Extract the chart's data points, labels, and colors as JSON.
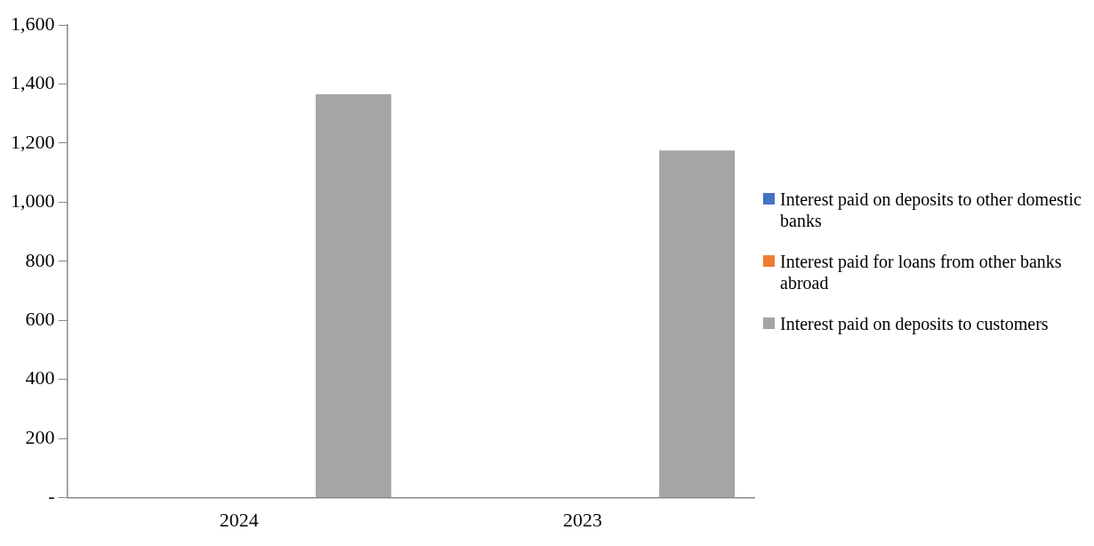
{
  "chart_data": {
    "type": "bar",
    "categories": [
      "2024",
      "2023"
    ],
    "series": [
      {
        "name": "Interest paid on deposits to other domestic banks",
        "color": "#4472c4",
        "values": [
          0,
          0
        ]
      },
      {
        "name": "Interest paid for loans from other banks abroad",
        "color": "#ed7d31",
        "values": [
          0,
          0
        ]
      },
      {
        "name": "Interest paid on deposits to customers",
        "color": "#a5a5a5",
        "values": [
          1365,
          1175
        ]
      }
    ],
    "ylim": [
      0,
      1600
    ],
    "yticks": [
      {
        "value": 0,
        "label": "-"
      },
      {
        "value": 200,
        "label": "200"
      },
      {
        "value": 400,
        "label": "400"
      },
      {
        "value": 600,
        "label": "600"
      },
      {
        "value": 800,
        "label": "800"
      },
      {
        "value": 1000,
        "label": "1,000"
      },
      {
        "value": 1200,
        "label": "1,200"
      },
      {
        "value": 1400,
        "label": "1,400"
      },
      {
        "value": 1600,
        "label": "1,600"
      }
    ],
    "grid": false,
    "legend": "right"
  }
}
